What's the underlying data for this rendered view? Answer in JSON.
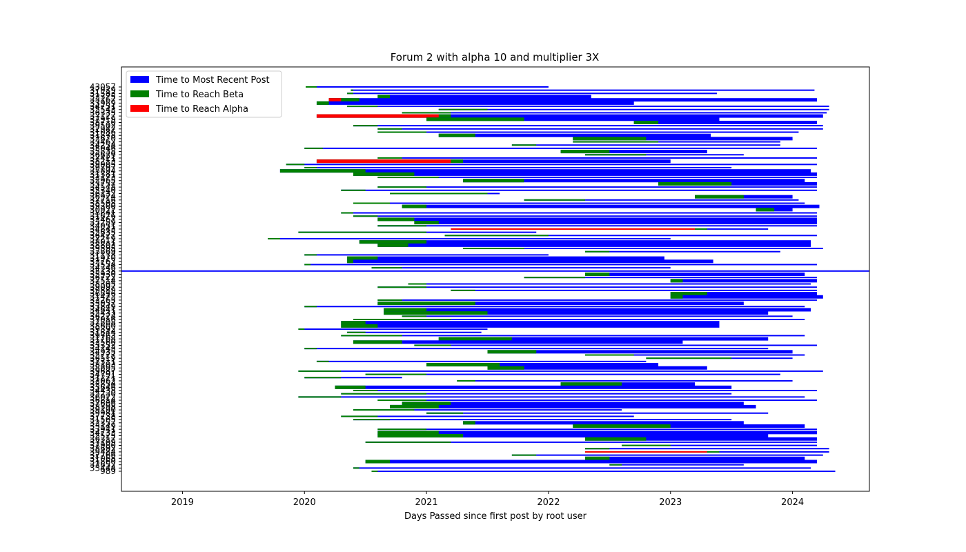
{
  "figure": {
    "title": "Forum 2 with alpha 10 and multiplier 3X",
    "xlabel": "Days Passed since first post by root user"
  },
  "legend": [
    {
      "key": "recent",
      "label": "Time to Most Recent Post",
      "color": "#0000ff"
    },
    {
      "key": "beta",
      "label": "Time to Reach Beta",
      "color": "#008000"
    },
    {
      "key": "alpha",
      "label": "Time to Reach Alpha",
      "color": "#ff0000"
    }
  ],
  "chart_data": {
    "type": "bar",
    "orientation": "horizontal",
    "title": "Forum 2 with alpha 10 and multiplier 3X",
    "xlabel": "Days Passed since first post by root user",
    "ylabel": "",
    "xlim": [
      2018.5,
      2024.63
    ],
    "x_ticks": [
      2019,
      2020,
      2021,
      2022,
      2023,
      2024
    ],
    "legend_position": "top-left",
    "grid": false,
    "series_order": [
      "recent",
      "beta",
      "alpha"
    ],
    "y_tick_labels_top": "43057",
    "y_tick_labels_bottom": "989",
    "categories_note_visible": [
      "43057",
      "989"
    ],
    "threads": [
      {
        "start": 2020.01,
        "alpha": 2020.01,
        "beta": 2020.1,
        "recent": 2022.0
      },
      {
        "start": 2020.38,
        "alpha": 2020.38,
        "beta": 2020.4,
        "recent": 2024.18
      },
      {
        "start": 2020.35,
        "alpha": 2020.35,
        "beta": 2020.4,
        "recent": 2023.38
      },
      {
        "start": 2020.6,
        "alpha": 2020.6,
        "beta": 2020.7,
        "recent": 2022.35,
        "thick": true
      },
      {
        "start": 2020.2,
        "alpha": 2020.3,
        "beta": 2020.45,
        "recent": 2024.2,
        "thick": true
      },
      {
        "start": 2020.1,
        "alpha": 2020.1,
        "beta": 2020.2,
        "recent": 2022.7,
        "thick": true
      },
      {
        "start": 2020.35,
        "alpha": 2020.35,
        "beta": 2020.6,
        "recent": 2024.3
      },
      {
        "start": 2021.1,
        "alpha": 2021.1,
        "beta": 2021.5,
        "recent": 2024.3
      },
      {
        "start": 2020.8,
        "alpha": 2020.8,
        "beta": 2021.2,
        "recent": 2024.28
      },
      {
        "start": 2020.1,
        "alpha": 2021.1,
        "beta": 2021.2,
        "recent": 2024.25,
        "thick": true
      },
      {
        "start": 2021.0,
        "alpha": 2021.0,
        "beta": 2021.8,
        "recent": 2023.4,
        "thick": true
      },
      {
        "start": 2022.7,
        "alpha": 2022.7,
        "beta": 2022.9,
        "recent": 2024.2,
        "thick": true
      },
      {
        "start": 2020.4,
        "alpha": 2020.4,
        "beta": 2020.6,
        "recent": 2024.25
      },
      {
        "start": 2020.6,
        "alpha": 2020.6,
        "beta": 2020.8,
        "recent": 2024.25
      },
      {
        "start": 2020.6,
        "alpha": 2020.6,
        "beta": 2021.0,
        "recent": 2024.05
      },
      {
        "start": 2021.1,
        "alpha": 2021.1,
        "beta": 2021.4,
        "recent": 2023.33,
        "thick": true
      },
      {
        "start": 2022.2,
        "alpha": 2022.2,
        "beta": 2022.8,
        "recent": 2024.0,
        "thick": true
      },
      {
        "start": 2022.2,
        "alpha": 2022.2,
        "beta": 2022.9,
        "recent": 2023.9
      },
      {
        "start": 2021.7,
        "alpha": 2021.7,
        "beta": 2021.9,
        "recent": 2023.9
      },
      {
        "start": 2020.0,
        "alpha": 2020.0,
        "beta": 2020.15,
        "recent": 2024.2
      },
      {
        "start": 2022.1,
        "alpha": 2022.1,
        "beta": 2022.5,
        "recent": 2023.3,
        "thick": true
      },
      {
        "start": 2022.3,
        "alpha": 2022.3,
        "beta": 2022.8,
        "recent": 2023.6
      },
      {
        "start": 2020.6,
        "alpha": 2020.6,
        "beta": 2020.8,
        "recent": 2024.2
      },
      {
        "start": 2020.1,
        "alpha": 2021.2,
        "beta": 2021.3,
        "recent": 2023.0,
        "thick": true
      },
      {
        "start": 2019.85,
        "alpha": 2019.85,
        "beta": 2020.0,
        "recent": 2024.2
      },
      {
        "start": 2020.0,
        "alpha": 2020.0,
        "beta": 2020.1,
        "recent": 2023.5
      },
      {
        "start": 2019.8,
        "alpha": 2019.8,
        "beta": 2020.5,
        "recent": 2024.15,
        "thick": true
      },
      {
        "start": 2020.4,
        "alpha": 2020.4,
        "beta": 2020.9,
        "recent": 2024.2,
        "thick": true
      },
      {
        "start": 2020.6,
        "alpha": 2020.6,
        "beta": 2021.1,
        "recent": 2024.2
      },
      {
        "start": 2021.3,
        "alpha": 2021.3,
        "beta": 2021.8,
        "recent": 2024.1,
        "thick": true
      },
      {
        "start": 2022.9,
        "alpha": 2022.9,
        "beta": 2023.5,
        "recent": 2024.2,
        "thick": true
      },
      {
        "start": 2020.6,
        "alpha": 2020.6,
        "beta": 2021.0,
        "recent": 2024.2
      },
      {
        "start": 2020.3,
        "alpha": 2020.3,
        "beta": 2020.5,
        "recent": 2024.2
      },
      {
        "start": 2020.7,
        "alpha": 2020.7,
        "beta": 2021.5,
        "recent": 2021.6
      },
      {
        "start": 2023.2,
        "alpha": 2023.2,
        "beta": 2023.6,
        "recent": 2024.0,
        "thick": true
      },
      {
        "start": 2021.8,
        "alpha": 2021.8,
        "beta": 2022.3,
        "recent": 2024.05
      },
      {
        "start": 2020.4,
        "alpha": 2020.4,
        "beta": 2020.7,
        "recent": 2024.1
      },
      {
        "start": 2020.8,
        "alpha": 2020.8,
        "beta": 2021.0,
        "recent": 2024.22,
        "thick": true
      },
      {
        "start": 2023.7,
        "alpha": 2023.7,
        "beta": 2023.85,
        "recent": 2024.0,
        "thick": true
      },
      {
        "start": 2020.3,
        "alpha": 2020.3,
        "beta": 2020.4,
        "recent": 2024.2
      },
      {
        "start": 2020.4,
        "alpha": 2020.4,
        "beta": 2020.6,
        "recent": 2024.2
      },
      {
        "start": 2020.6,
        "alpha": 2020.6,
        "beta": 2020.9,
        "recent": 2024.2,
        "thick": true
      },
      {
        "start": 2020.9,
        "alpha": 2020.9,
        "beta": 2021.1,
        "recent": 2024.2,
        "thick": true
      },
      {
        "start": 2020.6,
        "alpha": 2020.6,
        "beta": 2021.0,
        "recent": 2024.2
      },
      {
        "start": 2021.2,
        "alpha": 2023.2,
        "beta": 2023.3,
        "recent": 2023.8
      },
      {
        "start": 2019.95,
        "alpha": 2019.95,
        "beta": 2021.0,
        "recent": 2021.9
      },
      {
        "start": 2021.15,
        "alpha": 2021.15,
        "beta": 2022.0,
        "recent": 2024.2
      },
      {
        "start": 2019.7,
        "alpha": 2019.7,
        "beta": 2019.8,
        "recent": 2023.0
      },
      {
        "start": 2020.45,
        "alpha": 2020.45,
        "beta": 2021.0,
        "recent": 2024.15,
        "thick": true
      },
      {
        "start": 2020.6,
        "alpha": 2020.6,
        "beta": 2020.85,
        "recent": 2024.15,
        "thick": true
      },
      {
        "start": 2021.3,
        "alpha": 2021.3,
        "beta": 2021.8,
        "recent": 2024.25
      },
      {
        "start": 2022.3,
        "alpha": 2022.3,
        "beta": 2022.5,
        "recent": 2023.9
      },
      {
        "start": 2020.0,
        "alpha": 2020.0,
        "beta": 2020.1,
        "recent": 2022.0
      },
      {
        "start": 2020.35,
        "alpha": 2020.35,
        "beta": 2020.6,
        "recent": 2022.95,
        "thick": true
      },
      {
        "start": 2020.35,
        "alpha": 2020.35,
        "beta": 2020.4,
        "recent": 2023.35,
        "thick": true
      },
      {
        "start": 2020.0,
        "alpha": 2020.0,
        "beta": 2020.05,
        "recent": 2024.2
      },
      {
        "start": 2020.55,
        "alpha": 2020.55,
        "beta": 2020.8,
        "recent": 2023.0
      },
      {
        "start": 2018.5,
        "alpha": 2018.5,
        "beta": 2018.5,
        "recent": 2024.63
      },
      {
        "start": 2022.3,
        "alpha": 2022.3,
        "beta": 2022.5,
        "recent": 2024.1,
        "thick": true
      },
      {
        "start": 2021.8,
        "alpha": 2021.8,
        "beta": 2022.3,
        "recent": 2024.2
      },
      {
        "start": 2023.0,
        "alpha": 2023.0,
        "beta": 2023.1,
        "recent": 2024.2,
        "thick": true
      },
      {
        "start": 2020.85,
        "alpha": 2020.85,
        "beta": 2021.0,
        "recent": 2024.15
      },
      {
        "start": 2020.6,
        "alpha": 2020.6,
        "beta": 2021.0,
        "recent": 2024.2
      },
      {
        "start": 2021.2,
        "alpha": 2021.2,
        "beta": 2021.4,
        "recent": 2024.2
      },
      {
        "start": 2023.0,
        "alpha": 2023.0,
        "beta": 2023.3,
        "recent": 2024.2,
        "thick": true
      },
      {
        "start": 2023.0,
        "alpha": 2023.0,
        "beta": 2023.1,
        "recent": 2024.25,
        "thick": true
      },
      {
        "start": 2020.6,
        "alpha": 2020.6,
        "beta": 2020.8,
        "recent": 2024.2
      },
      {
        "start": 2020.6,
        "alpha": 2020.6,
        "beta": 2021.4,
        "recent": 2023.6,
        "thick": true
      },
      {
        "start": 2020.0,
        "alpha": 2020.0,
        "beta": 2020.1,
        "recent": 2024.1
      },
      {
        "start": 2020.65,
        "alpha": 2020.65,
        "beta": 2021.0,
        "recent": 2024.15,
        "thick": true
      },
      {
        "start": 2020.65,
        "alpha": 2020.65,
        "beta": 2021.5,
        "recent": 2023.8,
        "thick": true
      },
      {
        "start": 2020.8,
        "alpha": 2020.8,
        "beta": 2021.0,
        "recent": 2024.0
      },
      {
        "start": 2020.4,
        "alpha": 2020.4,
        "beta": 2021.2,
        "recent": 2024.1
      },
      {
        "start": 2020.3,
        "alpha": 2020.3,
        "beta": 2020.5,
        "recent": 2023.4,
        "thick": true
      },
      {
        "start": 2020.3,
        "alpha": 2020.3,
        "beta": 2020.6,
        "recent": 2023.4,
        "thick": true
      },
      {
        "start": 2019.95,
        "alpha": 2019.95,
        "beta": 2020.0,
        "recent": 2021.5
      },
      {
        "start": 2020.35,
        "alpha": 2020.35,
        "beta": 2020.5,
        "recent": 2021.45
      },
      {
        "start": 2020.3,
        "alpha": 2020.3,
        "beta": 2020.8,
        "recent": 2024.1
      },
      {
        "start": 2021.1,
        "alpha": 2021.1,
        "beta": 2021.7,
        "recent": 2023.8,
        "thick": true
      },
      {
        "start": 2020.4,
        "alpha": 2020.4,
        "beta": 2020.8,
        "recent": 2023.1,
        "thick": true
      },
      {
        "start": 2020.9,
        "alpha": 2020.9,
        "beta": 2021.2,
        "recent": 2024.2
      },
      {
        "start": 2020.0,
        "alpha": 2020.0,
        "beta": 2020.1,
        "recent": 2023.8
      },
      {
        "start": 2021.5,
        "alpha": 2021.5,
        "beta": 2021.9,
        "recent": 2024.0,
        "thick": true
      },
      {
        "start": 2022.3,
        "alpha": 2022.3,
        "beta": 2022.7,
        "recent": 2024.1
      },
      {
        "start": 2022.8,
        "alpha": 2022.8,
        "beta": 2023.5,
        "recent": 2024.0
      },
      {
        "start": 2020.1,
        "alpha": 2020.1,
        "beta": 2020.2,
        "recent": 2022.8
      },
      {
        "start": 2021.0,
        "alpha": 2021.0,
        "beta": 2021.6,
        "recent": 2022.9,
        "thick": true
      },
      {
        "start": 2021.5,
        "alpha": 2021.5,
        "beta": 2021.8,
        "recent": 2023.3,
        "thick": true
      },
      {
        "start": 2019.95,
        "alpha": 2019.95,
        "beta": 2020.3,
        "recent": 2024.25
      },
      {
        "start": 2020.5,
        "alpha": 2020.5,
        "beta": 2021.0,
        "recent": 2023.9
      },
      {
        "start": 2020.0,
        "alpha": 2020.0,
        "beta": 2020.3,
        "recent": 2020.8
      },
      {
        "start": 2021.25,
        "alpha": 2021.25,
        "beta": 2021.4,
        "recent": 2024.0
      },
      {
        "start": 2022.1,
        "alpha": 2022.1,
        "beta": 2022.6,
        "recent": 2023.2,
        "thick": true
      },
      {
        "start": 2020.25,
        "alpha": 2020.25,
        "beta": 2020.5,
        "recent": 2023.5,
        "thick": true
      },
      {
        "start": 2020.4,
        "alpha": 2020.4,
        "beta": 2020.6,
        "recent": 2024.2
      },
      {
        "start": 2020.3,
        "alpha": 2020.3,
        "beta": 2021.0,
        "recent": 2023.5
      },
      {
        "start": 2019.95,
        "alpha": 2019.95,
        "beta": 2020.3,
        "recent": 2024.1
      },
      {
        "start": 2020.6,
        "alpha": 2020.6,
        "beta": 2021.0,
        "recent": 2024.2
      },
      {
        "start": 2020.8,
        "alpha": 2020.8,
        "beta": 2021.2,
        "recent": 2023.6,
        "thick": true
      },
      {
        "start": 2020.7,
        "alpha": 2020.7,
        "beta": 2021.1,
        "recent": 2023.7,
        "thick": true
      },
      {
        "start": 2020.4,
        "alpha": 2020.4,
        "beta": 2020.9,
        "recent": 2022.6
      },
      {
        "start": 2021.0,
        "alpha": 2021.0,
        "beta": 2021.3,
        "recent": 2023.8
      },
      {
        "start": 2020.3,
        "alpha": 2020.3,
        "beta": 2020.6,
        "recent": 2022.7
      },
      {
        "start": 2020.4,
        "alpha": 2020.4,
        "beta": 2020.7,
        "recent": 2023.5
      },
      {
        "start": 2021.3,
        "alpha": 2021.3,
        "beta": 2021.4,
        "recent": 2023.6,
        "thick": true
      },
      {
        "start": 2022.2,
        "alpha": 2022.2,
        "beta": 2023.0,
        "recent": 2024.1,
        "thick": true
      },
      {
        "start": 2020.6,
        "alpha": 2020.6,
        "beta": 2021.0,
        "recent": 2024.2
      },
      {
        "start": 2020.6,
        "alpha": 2020.6,
        "beta": 2021.1,
        "recent": 2024.2,
        "thick": true
      },
      {
        "start": 2020.6,
        "alpha": 2020.6,
        "beta": 2021.3,
        "recent": 2023.8,
        "thick": true
      },
      {
        "start": 2022.3,
        "alpha": 2022.3,
        "beta": 2022.8,
        "recent": 2024.2,
        "thick": true
      },
      {
        "start": 2020.5,
        "alpha": 2020.5,
        "beta": 2021.2,
        "recent": 2024.2
      },
      {
        "start": 2022.6,
        "alpha": 2022.6,
        "beta": 2023.0,
        "recent": 2024.2
      },
      {
        "start": 2022.3,
        "alpha": 2022.3,
        "beta": 2022.5,
        "recent": 2024.3
      },
      {
        "start": 2022.3,
        "alpha": 2023.3,
        "beta": 2023.4,
        "recent": 2024.3
      },
      {
        "start": 2021.7,
        "alpha": 2021.7,
        "beta": 2021.9,
        "recent": 2024.25
      },
      {
        "start": 2022.3,
        "alpha": 2022.3,
        "beta": 2022.5,
        "recent": 2024.1,
        "thick": true
      },
      {
        "start": 2020.5,
        "alpha": 2020.5,
        "beta": 2020.7,
        "recent": 2024.2,
        "thick": true
      },
      {
        "start": 2022.5,
        "alpha": 2022.5,
        "beta": 2022.6,
        "recent": 2023.6
      },
      {
        "start": 2020.4,
        "alpha": 2020.4,
        "beta": 2020.45,
        "recent": 2024.15
      },
      {
        "start": 2020.55,
        "alpha": 2020.55,
        "beta": 2020.6,
        "recent": 2024.35
      }
    ]
  }
}
